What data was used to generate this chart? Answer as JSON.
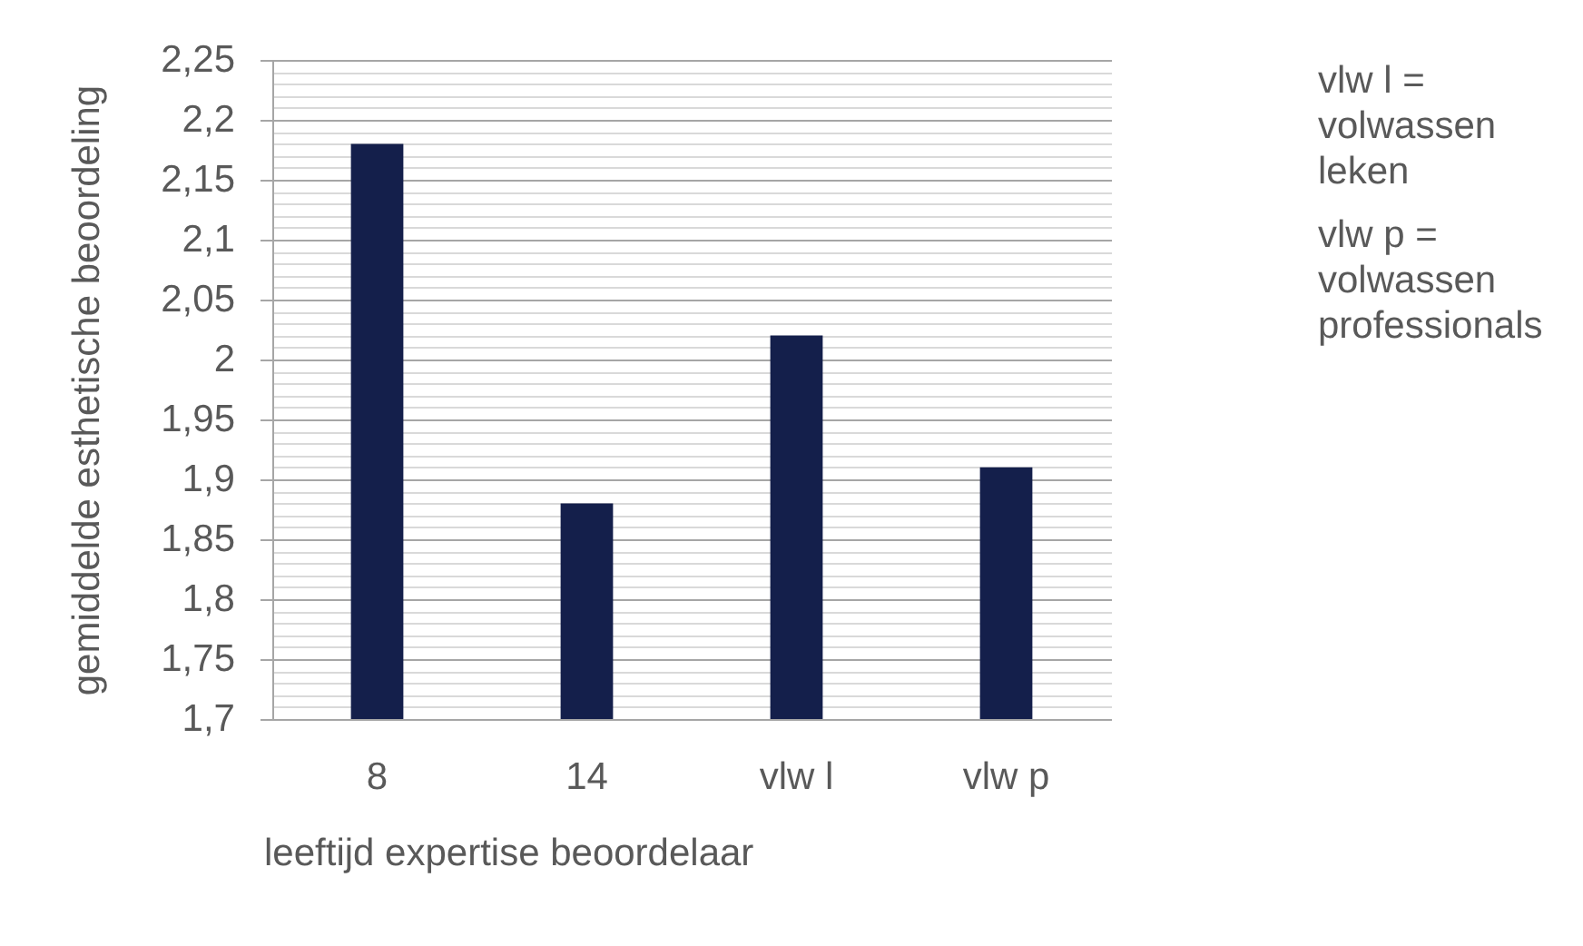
{
  "chart_data": {
    "type": "bar",
    "xlabel": "leeftijd expertise beoordelaar",
    "ylabel": "gemiddelde esthetische beoordeling",
    "categories": [
      "8",
      "14",
      "vlw l",
      "vlw p"
    ],
    "values": [
      2.18,
      1.88,
      2.02,
      1.91
    ],
    "color": "#141f4b",
    "ylim": [
      1.7,
      2.25
    ],
    "yticks": [
      {
        "value": 1.7,
        "label": "1,7"
      },
      {
        "value": 1.71,
        "label": null
      },
      {
        "value": 1.72,
        "label": null
      },
      {
        "value": 1.73,
        "label": null
      },
      {
        "value": 1.74,
        "label": null
      },
      {
        "value": 1.75,
        "label": "1,75"
      },
      {
        "value": 1.76,
        "label": null
      },
      {
        "value": 1.77,
        "label": null
      },
      {
        "value": 1.78,
        "label": null
      },
      {
        "value": 1.79,
        "label": null
      },
      {
        "value": 1.8,
        "label": "1,8"
      },
      {
        "value": 1.81,
        "label": null
      },
      {
        "value": 1.82,
        "label": null
      },
      {
        "value": 1.83,
        "label": null
      },
      {
        "value": 1.84,
        "label": null
      },
      {
        "value": 1.85,
        "label": "1,85"
      },
      {
        "value": 1.86,
        "label": null
      },
      {
        "value": 1.87,
        "label": null
      },
      {
        "value": 1.88,
        "label": null
      },
      {
        "value": 1.89,
        "label": null
      },
      {
        "value": 1.9,
        "label": "1,9"
      },
      {
        "value": 1.91,
        "label": null
      },
      {
        "value": 1.92,
        "label": null
      },
      {
        "value": 1.93,
        "label": null
      },
      {
        "value": 1.94,
        "label": null
      },
      {
        "value": 1.95,
        "label": "1,95"
      },
      {
        "value": 1.96,
        "label": null
      },
      {
        "value": 1.97,
        "label": null
      },
      {
        "value": 1.98,
        "label": null
      },
      {
        "value": 1.99,
        "label": null
      },
      2,
      {
        "value": 2.01,
        "label": null
      },
      {
        "value": 2.02,
        "label": null
      },
      {
        "value": 2.03,
        "label": null
      },
      {
        "value": 2.04,
        "label": null
      },
      {
        "value": 2.05,
        "label": "2,05"
      },
      {
        "value": 2.06,
        "label": null
      },
      {
        "value": 2.07,
        "label": null
      },
      {
        "value": 2.08,
        "label": null
      },
      {
        "value": 2.09,
        "label": null
      },
      {
        "value": 2.1,
        "label": "2,1"
      },
      {
        "value": 2.11,
        "label": null
      },
      {
        "value": 2.12,
        "label": null
      },
      {
        "value": 2.13,
        "label": null
      },
      {
        "value": 2.14,
        "label": null
      },
      {
        "value": 2.15,
        "label": "2,15"
      },
      {
        "value": 2.16,
        "label": null
      },
      {
        "value": 2.17,
        "label": null
      },
      {
        "value": 2.18,
        "label": null
      },
      {
        "value": 2.19,
        "label": null
      },
      {
        "value": 2.2,
        "label": "2,2"
      },
      {
        "value": 2.21,
        "label": null
      },
      {
        "value": 2.22,
        "label": null
      },
      {
        "value": 2.23,
        "label": null
      },
      {
        "value": 2.24,
        "label": null
      },
      {
        "value": 2.25,
        "label": "2,25"
      }
    ],
    "grid": "y",
    "annotations": [
      "vlw l = volwassen leken",
      "vlw p = volwassen professionals"
    ]
  }
}
